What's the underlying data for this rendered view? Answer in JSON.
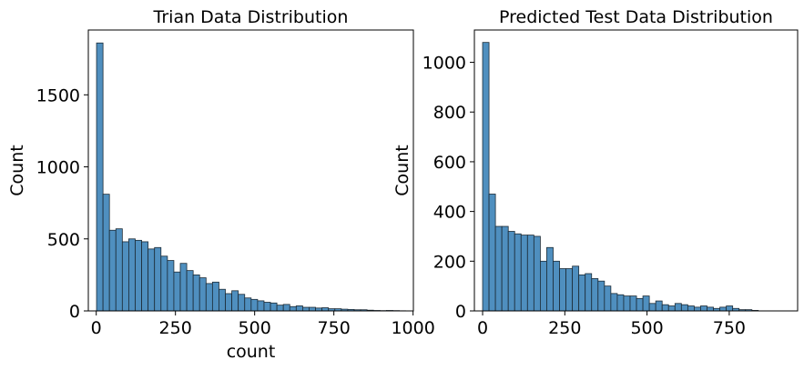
{
  "chart_data": [
    {
      "type": "bar",
      "title": "Trian Data Distribution",
      "xlabel": "count",
      "ylabel": "Count",
      "xlim": [
        -25,
        1001
      ],
      "ylim": [
        0,
        1950
      ],
      "xticks": [
        0,
        250,
        500,
        750,
        1000
      ],
      "yticks": [
        0,
        500,
        1000,
        1500
      ],
      "bin_start": 1,
      "bin_width": 20.33,
      "values": [
        1860,
        810,
        560,
        570,
        480,
        500,
        490,
        480,
        430,
        440,
        380,
        350,
        270,
        330,
        280,
        250,
        230,
        190,
        200,
        150,
        120,
        140,
        115,
        90,
        80,
        70,
        60,
        55,
        40,
        45,
        30,
        35,
        25,
        25,
        20,
        22,
        15,
        15,
        12,
        10,
        8,
        8,
        5,
        3,
        2,
        3,
        2,
        1
      ]
    },
    {
      "type": "bar",
      "title": "Predicted Test Data Distribution",
      "xlabel": "",
      "ylabel": "Count",
      "xlim": [
        -25,
        958
      ],
      "ylim": [
        0,
        1130
      ],
      "xticks": [
        0,
        250,
        500,
        750
      ],
      "yticks": [
        0,
        200,
        400,
        600,
        800,
        1000
      ],
      "bin_start": 0,
      "bin_width": 19.5,
      "values": [
        1080,
        470,
        340,
        340,
        320,
        310,
        305,
        305,
        300,
        200,
        255,
        200,
        170,
        170,
        180,
        145,
        150,
        130,
        120,
        100,
        70,
        65,
        60,
        60,
        50,
        60,
        30,
        40,
        25,
        20,
        30,
        25,
        20,
        15,
        20,
        15,
        10,
        15,
        20,
        10,
        5,
        5,
        2
      ]
    }
  ],
  "colors": {
    "bar_fill": "#4f8fbf",
    "bar_edge": "#1c2b36",
    "axis": "#000000"
  }
}
